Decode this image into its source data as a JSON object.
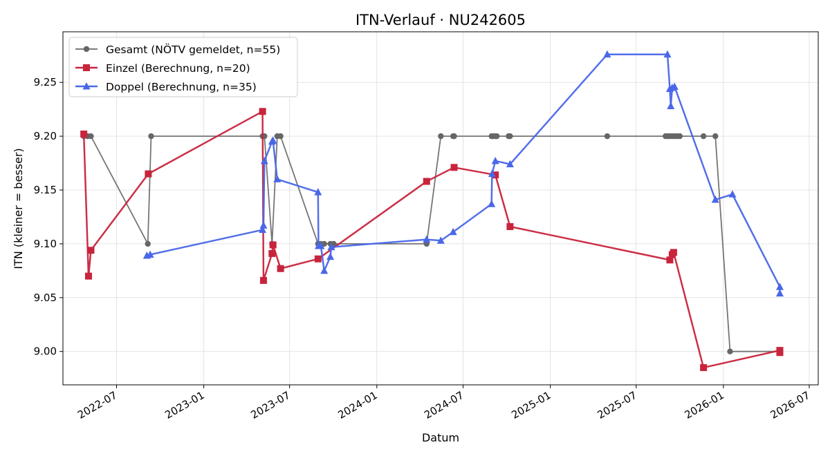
{
  "chart_data": {
    "type": "line",
    "title": "ITN-Verlauf · NU242605",
    "xlabel": "Datum",
    "ylabel": "ITN  (kleiner = besser)",
    "x_axis_type": "date",
    "xlim": [
      "2022-03-10",
      "2026-07-20"
    ],
    "ylim": [
      8.969,
      9.297
    ],
    "x_ticks": [
      "2022-07",
      "2023-01",
      "2023-07",
      "2024-01",
      "2024-07",
      "2025-01",
      "2025-07",
      "2026-01",
      "2026-07"
    ],
    "y_ticks": [
      "9.00",
      "9.05",
      "9.10",
      "9.15",
      "9.20",
      "9.25"
    ],
    "grid": true,
    "legend_position": "top-left",
    "series": [
      {
        "name": "Gesamt (NÖTV gemeldet, n=55)",
        "color": "#666666",
        "marker": "circle",
        "points": [
          [
            "2022-04-23",
            9.2
          ],
          [
            "2022-05-01",
            9.2
          ],
          [
            "2022-05-08",
            9.2
          ],
          [
            "2022-09-05",
            9.1
          ],
          [
            "2022-09-12",
            9.2
          ],
          [
            "2023-05-05",
            9.2
          ],
          [
            "2023-05-07",
            9.2
          ],
          [
            "2023-05-09",
            9.2
          ],
          [
            "2023-05-25",
            9.1
          ],
          [
            "2023-06-05",
            9.2
          ],
          [
            "2023-06-12",
            9.2
          ],
          [
            "2023-08-30",
            9.1
          ],
          [
            "2023-09-05",
            9.1
          ],
          [
            "2023-09-12",
            9.1
          ],
          [
            "2023-09-25",
            9.1
          ],
          [
            "2023-10-02",
            9.1
          ],
          [
            "2024-04-15",
            9.1
          ],
          [
            "2024-05-15",
            9.2
          ],
          [
            "2024-06-10",
            9.2
          ],
          [
            "2024-06-12",
            9.2
          ],
          [
            "2024-08-30",
            9.2
          ],
          [
            "2024-09-02",
            9.2
          ],
          [
            "2024-09-07",
            9.2
          ],
          [
            "2024-09-10",
            9.2
          ],
          [
            "2024-10-05",
            9.2
          ],
          [
            "2024-10-08",
            9.2
          ],
          [
            "2025-05-01",
            9.2
          ],
          [
            "2025-09-01",
            9.2
          ],
          [
            "2025-09-05",
            9.2
          ],
          [
            "2025-09-10",
            9.2
          ],
          [
            "2025-09-15",
            9.2
          ],
          [
            "2025-09-20",
            9.2
          ],
          [
            "2025-09-25",
            9.2
          ],
          [
            "2025-10-01",
            9.2
          ],
          [
            "2025-11-20",
            9.2
          ],
          [
            "2025-12-15",
            9.2
          ],
          [
            "2026-01-15",
            9.0
          ],
          [
            "2026-04-30",
            9.0
          ]
        ]
      },
      {
        "name": "Einzel (Berechnung, n=20)",
        "color": "#c8243c",
        "marker": "square",
        "points": [
          [
            "2022-04-23",
            9.202
          ],
          [
            "2022-05-03",
            9.07
          ],
          [
            "2022-05-08",
            9.094
          ],
          [
            "2022-09-06",
            9.165
          ],
          [
            "2023-05-05",
            9.223
          ],
          [
            "2023-05-07",
            9.066
          ],
          [
            "2023-05-25",
            9.091
          ],
          [
            "2023-05-27",
            9.099
          ],
          [
            "2023-06-12",
            9.077
          ],
          [
            "2023-08-30",
            9.086
          ],
          [
            "2024-04-15",
            9.158
          ],
          [
            "2024-06-12",
            9.171
          ],
          [
            "2024-09-07",
            9.164
          ],
          [
            "2024-10-08",
            9.116
          ],
          [
            "2025-09-10",
            9.085
          ],
          [
            "2025-09-15",
            9.09
          ],
          [
            "2025-09-18",
            9.092
          ],
          [
            "2025-11-20",
            8.985
          ],
          [
            "2026-04-30",
            9.001
          ],
          [
            "2026-04-30",
            8.999
          ]
        ]
      },
      {
        "name": "Doppel (Berechnung, n=35)",
        "color": "#4a67e8",
        "marker": "triangle",
        "points": [
          [
            "2022-09-03",
            9.089
          ],
          [
            "2022-09-10",
            9.09
          ],
          [
            "2023-05-05",
            9.113
          ],
          [
            "2023-05-07",
            9.117
          ],
          [
            "2023-05-09",
            9.177
          ],
          [
            "2023-05-25",
            9.195
          ],
          [
            "2023-05-27",
            9.196
          ],
          [
            "2023-06-05",
            9.16
          ],
          [
            "2023-08-30",
            9.148
          ],
          [
            "2023-08-31",
            9.098
          ],
          [
            "2023-09-05",
            9.098
          ],
          [
            "2023-09-12",
            9.075
          ],
          [
            "2023-09-25",
            9.088
          ],
          [
            "2023-09-27",
            9.097
          ],
          [
            "2024-04-15",
            9.104
          ],
          [
            "2024-05-15",
            9.103
          ],
          [
            "2024-06-10",
            9.111
          ],
          [
            "2024-08-30",
            9.137
          ],
          [
            "2024-08-31",
            9.165
          ],
          [
            "2024-09-07",
            9.177
          ],
          [
            "2024-10-08",
            9.174
          ],
          [
            "2025-05-01",
            9.276
          ],
          [
            "2025-09-05",
            9.276
          ],
          [
            "2025-09-10",
            9.244
          ],
          [
            "2025-09-12",
            9.228
          ],
          [
            "2025-09-15",
            9.245
          ],
          [
            "2025-09-20",
            9.246
          ],
          [
            "2025-12-15",
            9.141
          ],
          [
            "2026-01-20",
            9.146
          ],
          [
            "2026-04-30",
            9.06
          ],
          [
            "2026-04-30",
            9.054
          ]
        ]
      }
    ]
  }
}
